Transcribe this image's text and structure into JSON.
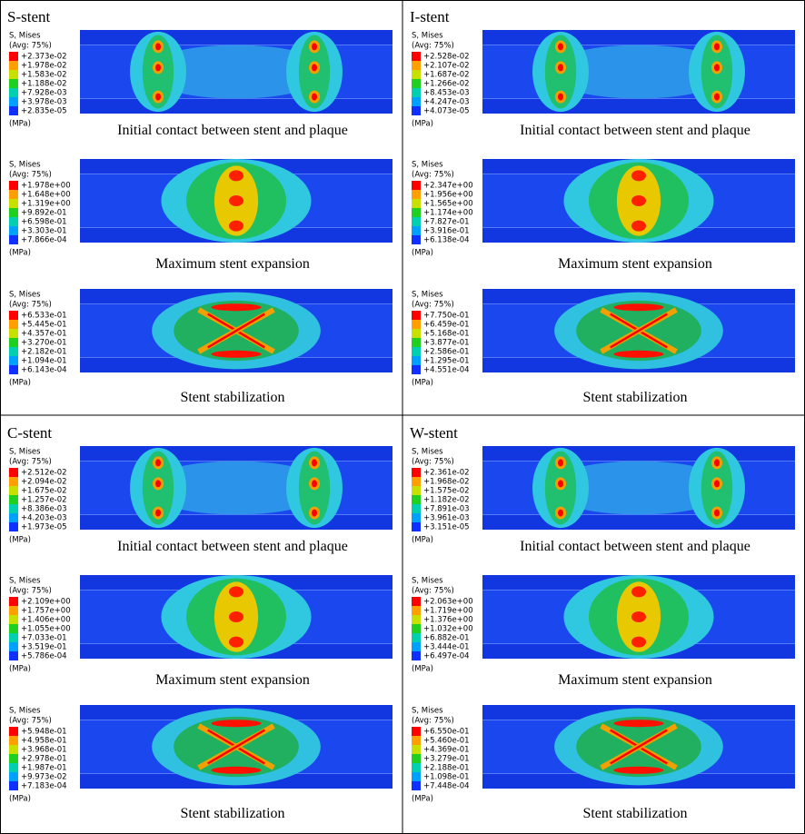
{
  "panels": [
    {
      "title": "S-stent",
      "stages": [
        {
          "legend": {
            "header": "S, Mises",
            "avg": "(Avg: 75%)",
            "levels": [
              "+2.373e-02",
              "+1.978e-02",
              "+1.583e-02",
              "+1.188e-02",
              "+7.928e-03",
              "+3.978e-03",
              "+2.835e-05"
            ],
            "unit": "(MPa)"
          },
          "caption": "Initial contact between stent and plaque"
        },
        {
          "legend": {
            "header": "S, Mises",
            "avg": "(Avg: 75%)",
            "levels": [
              "+1.978e+00",
              "+1.648e+00",
              "+1.319e+00",
              "+9.892e-01",
              "+6.598e-01",
              "+3.303e-01",
              "+7.866e-04"
            ],
            "unit": "(MPa)"
          },
          "caption": "Maximum stent expansion"
        },
        {
          "legend": {
            "header": "S, Mises",
            "avg": "(Avg: 75%)",
            "levels": [
              "+6.533e-01",
              "+5.445e-01",
              "+4.357e-01",
              "+3.270e-01",
              "+2.182e-01",
              "+1.094e-01",
              "+6.143e-04"
            ],
            "unit": "(MPa)"
          },
          "caption": "Stent stabilization"
        }
      ]
    },
    {
      "title": "I-stent",
      "stages": [
        {
          "legend": {
            "header": "S, Mises",
            "avg": "(Avg: 75%)",
            "levels": [
              "+2.528e-02",
              "+2.107e-02",
              "+1.687e-02",
              "+1.266e-02",
              "+8.453e-03",
              "+4.247e-03",
              "+4.073e-05"
            ],
            "unit": "(MPa)"
          },
          "caption": "Initial contact between stent and plaque"
        },
        {
          "legend": {
            "header": "S, Mises",
            "avg": "(Avg: 75%)",
            "levels": [
              "+2.347e+00",
              "+1.956e+00",
              "+1.565e+00",
              "+1.174e+00",
              "+7.827e-01",
              "+3.916e-01",
              "+6.138e-04"
            ],
            "unit": "(MPa)"
          },
          "caption": "Maximum stent expansion"
        },
        {
          "legend": {
            "header": "S, Mises",
            "avg": "(Avg: 75%)",
            "levels": [
              "+7.750e-01",
              "+6.459e-01",
              "+5.168e-01",
              "+3.877e-01",
              "+2.586e-01",
              "+1.295e-01",
              "+4.551e-04"
            ],
            "unit": "(MPa)"
          },
          "caption": "Stent stabilization"
        }
      ]
    },
    {
      "title": "C-stent",
      "stages": [
        {
          "legend": {
            "header": "S, Mises",
            "avg": "(Avg: 75%)",
            "levels": [
              "+2.512e-02",
              "+2.094e-02",
              "+1.675e-02",
              "+1.257e-02",
              "+8.386e-03",
              "+4.203e-03",
              "+1.973e-05"
            ],
            "unit": "(MPa)"
          },
          "caption": "Initial contact between stent and plaque"
        },
        {
          "legend": {
            "header": "S, Mises",
            "avg": "(Avg: 75%)",
            "levels": [
              "+2.109e+00",
              "+1.757e+00",
              "+1.406e+00",
              "+1.055e+00",
              "+7.033e-01",
              "+3.519e-01",
              "+5.786e-04"
            ],
            "unit": "(MPa)"
          },
          "caption": "Maximum stent expansion"
        },
        {
          "legend": {
            "header": "S, Mises",
            "avg": "(Avg: 75%)",
            "levels": [
              "+5.948e-01",
              "+4.958e-01",
              "+3.968e-01",
              "+2.978e-01",
              "+1.987e-01",
              "+9.973e-02",
              "+7.183e-04"
            ],
            "unit": "(MPa)"
          },
          "caption": "Stent stabilization"
        }
      ]
    },
    {
      "title": "W-stent",
      "stages": [
        {
          "legend": {
            "header": "S, Mises",
            "avg": "(Avg: 75%)",
            "levels": [
              "+2.361e-02",
              "+1.968e-02",
              "+1.575e-02",
              "+1.182e-02",
              "+7.891e-03",
              "+3.961e-03",
              "+3.151e-05"
            ],
            "unit": "(MPa)"
          },
          "caption": "Initial contact between stent and plaque"
        },
        {
          "legend": {
            "header": "S, Mises",
            "avg": "(Avg: 75%)",
            "levels": [
              "+2.063e+00",
              "+1.719e+00",
              "+1.376e+00",
              "+1.032e+00",
              "+6.882e-01",
              "+3.444e-01",
              "+6.497e-04"
            ],
            "unit": "(MPa)"
          },
          "caption": "Maximum stent expansion"
        },
        {
          "legend": {
            "header": "S, Mises",
            "avg": "(Avg: 75%)",
            "levels": [
              "+6.550e-01",
              "+5.460e-01",
              "+4.369e-01",
              "+3.279e-01",
              "+2.188e-01",
              "+1.098e-01",
              "+7.448e-04"
            ],
            "unit": "(MPa)"
          },
          "caption": "Stent stabilization"
        }
      ]
    }
  ]
}
